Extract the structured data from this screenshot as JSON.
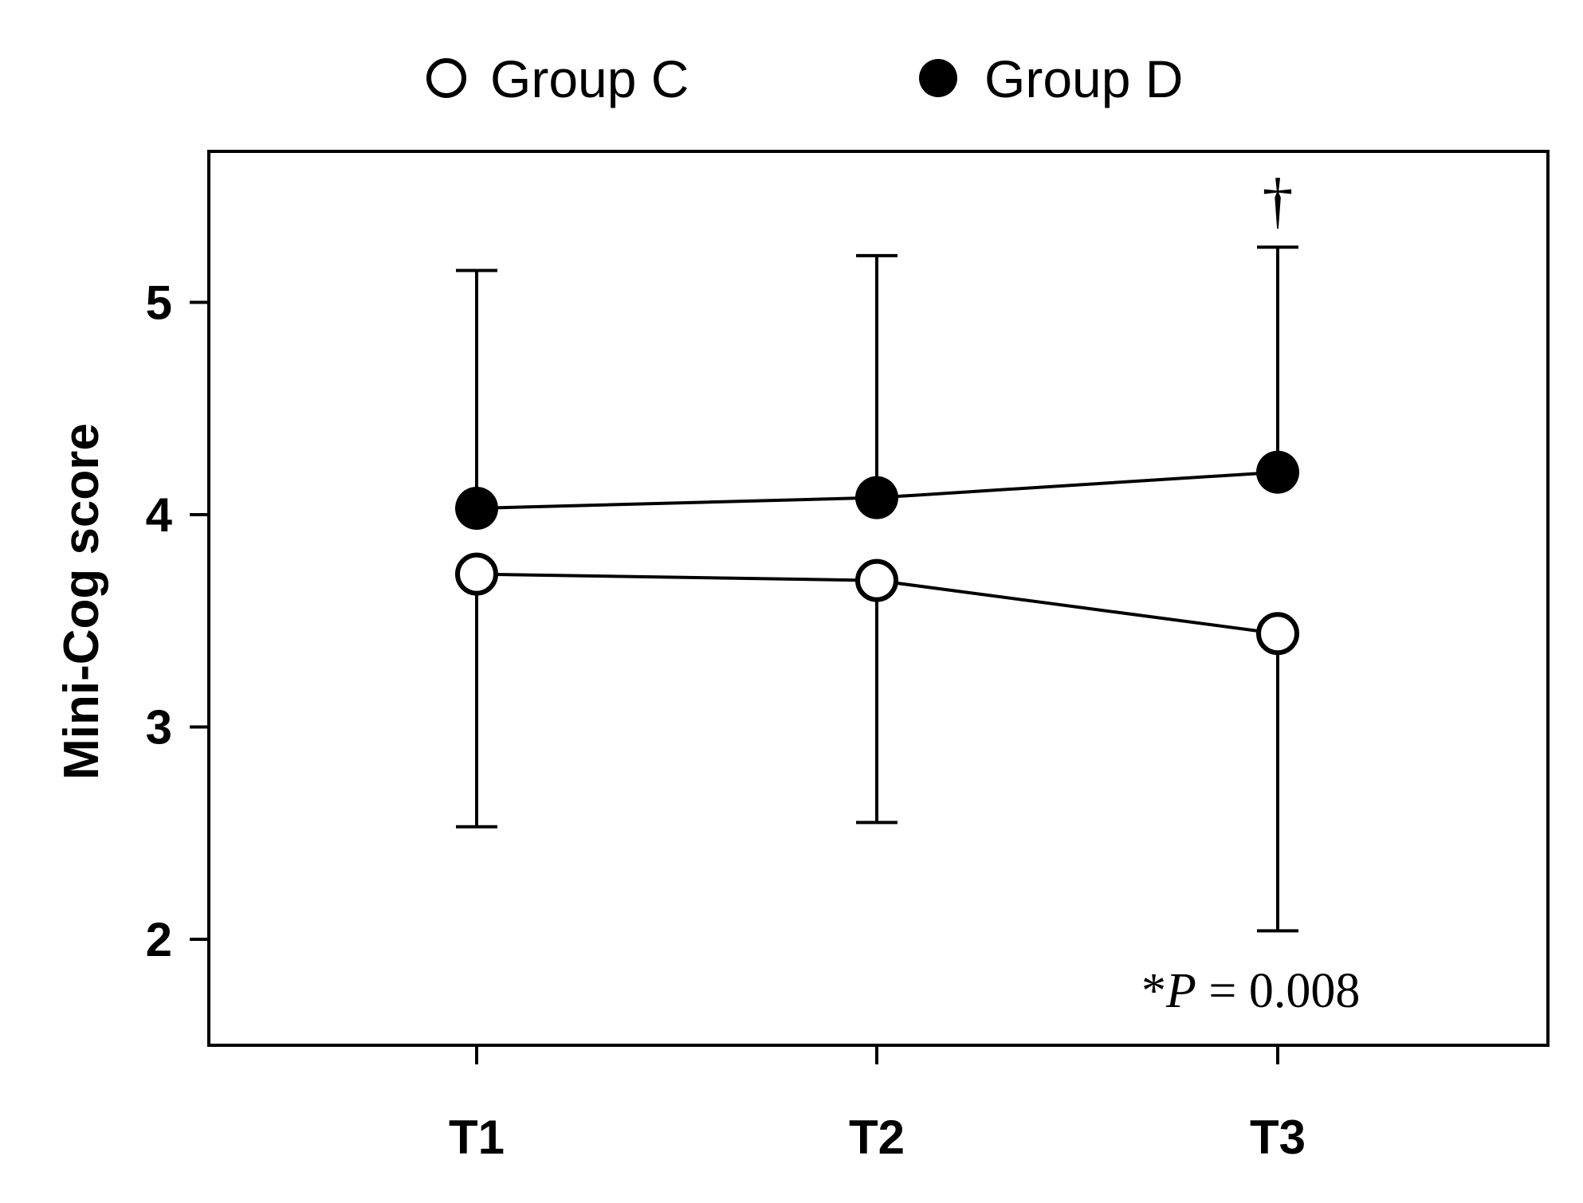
{
  "chart_data": {
    "type": "line",
    "ylabel": "Mini-Cog score",
    "xlabel": "",
    "categories": [
      "T1",
      "T2",
      "T3"
    ],
    "ylim": [
      1.5,
      5.7
    ],
    "yticks": [
      2,
      3,
      4,
      5
    ],
    "legend_placement": "top-center",
    "grid": false,
    "series": [
      {
        "name": "Group C",
        "marker": "open-circle",
        "values": [
          3.72,
          3.69,
          3.44
        ],
        "error_upper": [
          3.72,
          3.69,
          3.44
        ],
        "error_lower": [
          2.53,
          2.55,
          2.04
        ]
      },
      {
        "name": "Group D",
        "marker": "filled-circle",
        "values": [
          4.03,
          4.08,
          4.2
        ],
        "error_upper": [
          5.15,
          5.22,
          5.26
        ],
        "error_lower": [
          4.03,
          4.08,
          4.2
        ]
      }
    ],
    "annotations": {
      "dagger": {
        "text": "†",
        "category": "T3"
      },
      "pvalue": {
        "star": "*",
        "p": "P",
        "rest": " = 0.008"
      }
    },
    "colors": {
      "line": "#000000",
      "open_fill": "#ffffff",
      "filled": "#000000"
    }
  }
}
